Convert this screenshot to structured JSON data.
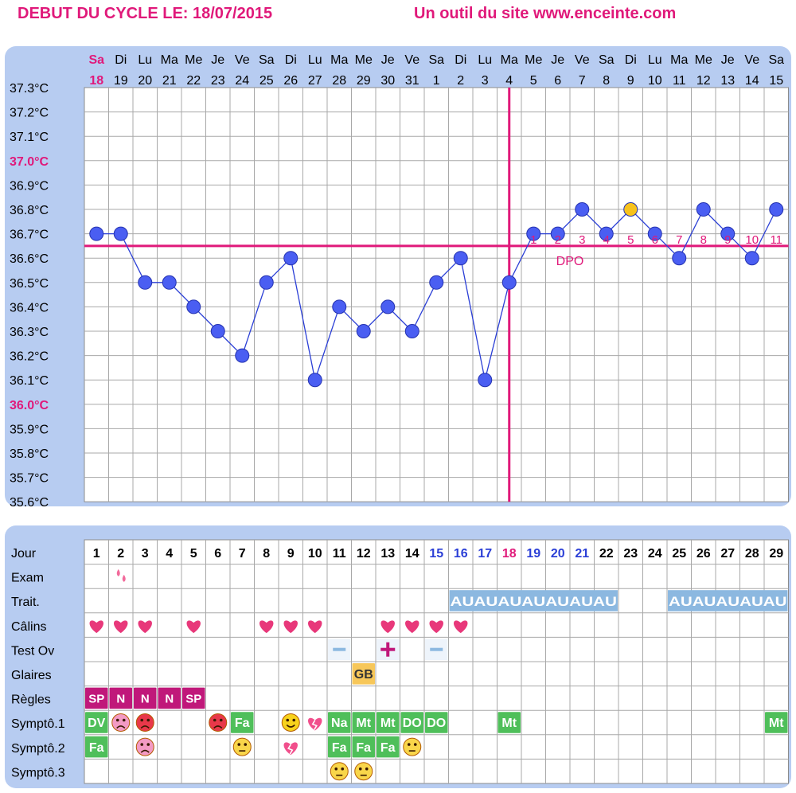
{
  "header": {
    "title": "DEBUT DU CYCLE LE: 18/07/2015",
    "source": "Un outil du site www.enceinte.com"
  },
  "colors": {
    "panel": "#b7ccf1",
    "accent": "#e0197a",
    "line": "#2b3fd6",
    "point": "#4a5ef2",
    "highlight_point": "#f7c21c",
    "blue_day": "#2b3fd6"
  },
  "chart_data": {
    "type": "line",
    "ylabel_unit": "°C",
    "ylim": [
      35.6,
      37.3
    ],
    "yticks": [
      "37.3°C",
      "37.2°C",
      "37.1°C",
      "37.0°C",
      "36.9°C",
      "36.8°C",
      "36.7°C",
      "36.6°C",
      "36.5°C",
      "36.4°C",
      "36.3°C",
      "36.2°C",
      "36.1°C",
      "36.0°C",
      "35.9°C",
      "35.8°C",
      "35.7°C",
      "35.6°C"
    ],
    "highlight_yticks": [
      "37.0°C",
      "36.0°C"
    ],
    "days": [
      {
        "dow": "Sa",
        "date": "18"
      },
      {
        "dow": "Di",
        "date": "19"
      },
      {
        "dow": "Lu",
        "date": "20"
      },
      {
        "dow": "Ma",
        "date": "21"
      },
      {
        "dow": "Me",
        "date": "22"
      },
      {
        "dow": "Je",
        "date": "23"
      },
      {
        "dow": "Ve",
        "date": "24"
      },
      {
        "dow": "Sa",
        "date": "25"
      },
      {
        "dow": "Di",
        "date": "26"
      },
      {
        "dow": "Lu",
        "date": "27"
      },
      {
        "dow": "Ma",
        "date": "28"
      },
      {
        "dow": "Me",
        "date": "29"
      },
      {
        "dow": "Je",
        "date": "30"
      },
      {
        "dow": "Ve",
        "date": "31"
      },
      {
        "dow": "Sa",
        "date": "1"
      },
      {
        "dow": "Di",
        "date": "2"
      },
      {
        "dow": "Lu",
        "date": "3"
      },
      {
        "dow": "Ma",
        "date": "4"
      },
      {
        "dow": "Me",
        "date": "5"
      },
      {
        "dow": "Je",
        "date": "6"
      },
      {
        "dow": "Ve",
        "date": "7"
      },
      {
        "dow": "Sa",
        "date": "8"
      },
      {
        "dow": "Di",
        "date": "9"
      },
      {
        "dow": "Lu",
        "date": "10"
      },
      {
        "dow": "Ma",
        "date": "11"
      },
      {
        "dow": "Me",
        "date": "12"
      },
      {
        "dow": "Je",
        "date": "13"
      },
      {
        "dow": "Ve",
        "date": "14"
      },
      {
        "dow": "Sa",
        "date": "15"
      }
    ],
    "series": [
      {
        "values": [
          36.7,
          36.7,
          36.5,
          36.5,
          36.4,
          36.3,
          36.2,
          36.5,
          36.6,
          36.1,
          36.4,
          36.3,
          36.4,
          36.3,
          36.5,
          36.6,
          36.1,
          36.5,
          36.7,
          36.7,
          36.8,
          36.7,
          36.8,
          36.7,
          36.6,
          36.8,
          36.7,
          36.6,
          36.8
        ]
      }
    ],
    "highlighted_point_index": 22,
    "coverline": 36.65,
    "ovulation_day_index": 17,
    "dpo_labels": [
      "1",
      "2",
      "3",
      "4",
      "5",
      "6",
      "7",
      "8",
      "9",
      "10",
      "11"
    ],
    "dpo_text": "DPO",
    "grid": true
  },
  "table": {
    "row_labels": [
      "Jour",
      "Exam",
      "Trait.",
      "Câlins",
      "Test Ov",
      "Glaires",
      "Règles",
      "Symptô.1",
      "Symptô.2",
      "Symptô.3"
    ],
    "days": [
      "1",
      "2",
      "3",
      "4",
      "5",
      "6",
      "7",
      "8",
      "9",
      "10",
      "11",
      "12",
      "13",
      "14",
      "15",
      "16",
      "17",
      "18",
      "19",
      "20",
      "21",
      "22",
      "23",
      "24",
      "25",
      "26",
      "27",
      "28",
      "29"
    ],
    "day_colors": [
      "#000",
      "#000",
      "#000",
      "#000",
      "#000",
      "#000",
      "#000",
      "#000",
      "#000",
      "#000",
      "#000",
      "#000",
      "#000",
      "#000",
      "#2b3fd6",
      "#2b3fd6",
      "#2b3fd6",
      "#e0197a",
      "#2b3fd6",
      "#2b3fd6",
      "#2b3fd6",
      "#000",
      "#000",
      "#000",
      "#000",
      "#000",
      "#000",
      "#000",
      "#000"
    ],
    "exam": [
      {
        "day": 2,
        "icon": "drops-icon"
      }
    ],
    "traitement": [
      {
        "start": 16,
        "end": 22,
        "label": "AUAUAUAUAUAUAU"
      },
      {
        "start": 25,
        "end": 29,
        "label": "AUAUAUAUAU"
      }
    ],
    "calins": [
      1,
      2,
      3,
      5,
      8,
      9,
      10,
      13,
      14,
      15,
      16
    ],
    "test_ov": [
      {
        "day": 11,
        "result": "neg"
      },
      {
        "day": 13,
        "result": "pos"
      },
      {
        "day": 15,
        "result": "neg"
      }
    ],
    "glaires": [
      {
        "day": 12,
        "label": "GB"
      }
    ],
    "regles": [
      {
        "day": 1,
        "label": "SP"
      },
      {
        "day": 2,
        "label": "N"
      },
      {
        "day": 3,
        "label": "N"
      },
      {
        "day": 4,
        "label": "N"
      },
      {
        "day": 5,
        "label": "SP"
      }
    ],
    "sympto1": [
      {
        "day": 1,
        "label": "DV"
      },
      {
        "day": 2,
        "icon": "sad-pink"
      },
      {
        "day": 3,
        "icon": "angry-red"
      },
      {
        "day": 6,
        "icon": "angry-red"
      },
      {
        "day": 7,
        "label": "Fa"
      },
      {
        "day": 9,
        "icon": "smile-yellow"
      },
      {
        "day": 10,
        "icon": "broken-heart"
      },
      {
        "day": 11,
        "label": "Na"
      },
      {
        "day": 12,
        "label": "Mt"
      },
      {
        "day": 13,
        "label": "Mt"
      },
      {
        "day": 14,
        "label": "DO"
      },
      {
        "day": 15,
        "label": "DO"
      },
      {
        "day": 18,
        "label": "Mt"
      },
      {
        "day": 29,
        "label": "Mt"
      }
    ],
    "sympto2": [
      {
        "day": 1,
        "label": "Fa"
      },
      {
        "day": 3,
        "icon": "sad-pink"
      },
      {
        "day": 7,
        "icon": "tired-yellow"
      },
      {
        "day": 9,
        "icon": "broken-heart"
      },
      {
        "day": 11,
        "label": "Fa"
      },
      {
        "day": 12,
        "label": "Fa"
      },
      {
        "day": 13,
        "label": "Fa"
      },
      {
        "day": 14,
        "icon": "tired-yellow"
      }
    ],
    "sympto3": [
      {
        "day": 11,
        "icon": "tired-yellow"
      },
      {
        "day": 12,
        "icon": "tired-yellow"
      }
    ]
  }
}
